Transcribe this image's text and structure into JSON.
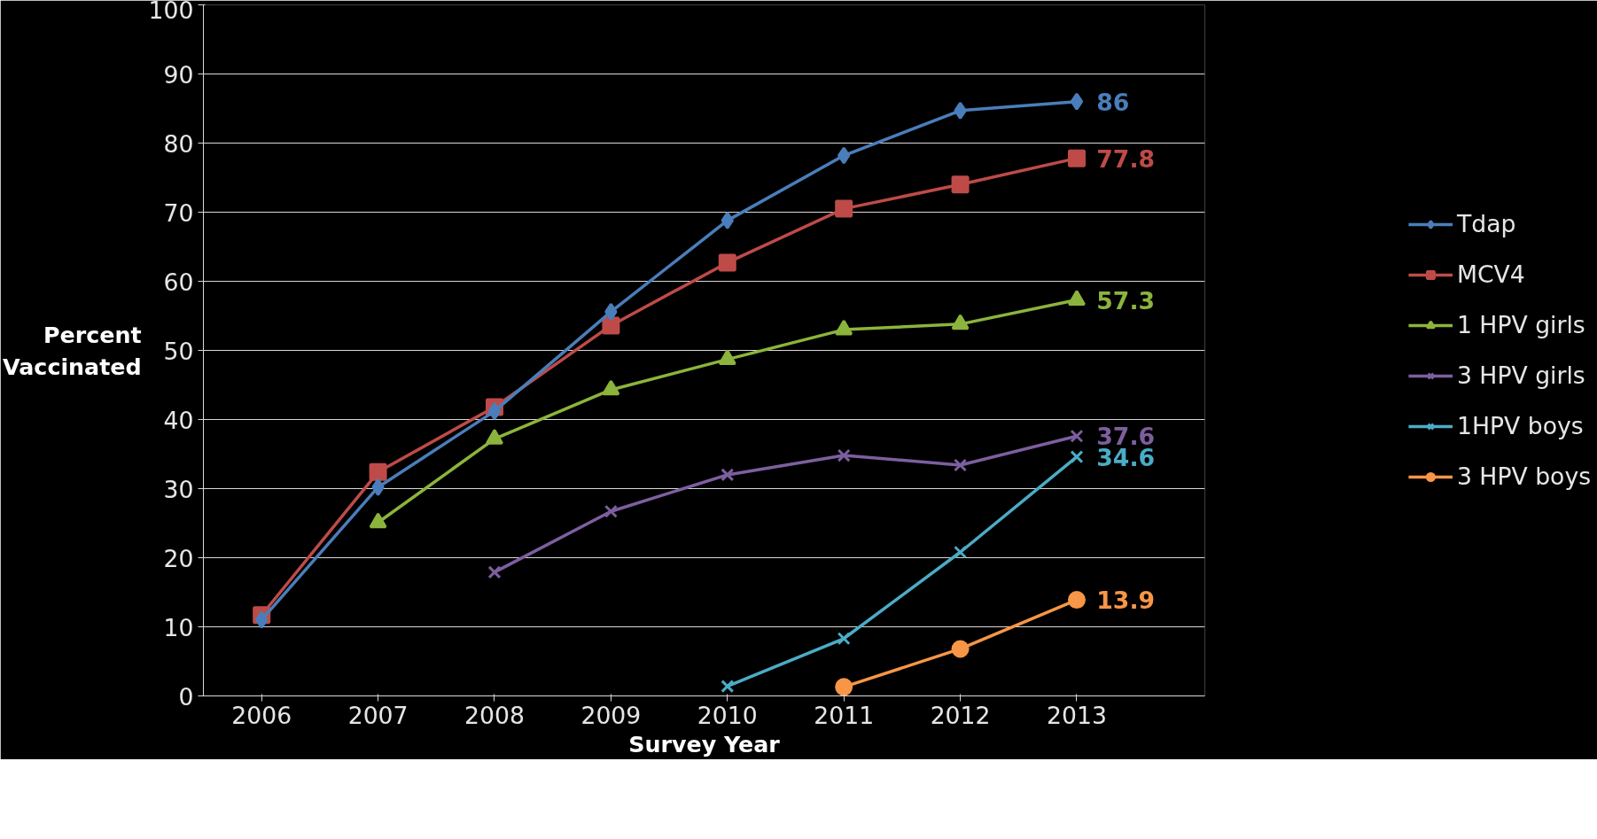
{
  "chart_data": {
    "type": "line",
    "xlabel": "Survey Year",
    "ylabel": "Percent\nVaccinated",
    "categories": [
      "2006",
      "2007",
      "2008",
      "2009",
      "2010",
      "2011",
      "2012",
      "2013"
    ],
    "ylim": [
      0,
      100
    ],
    "yticks": [
      0,
      10,
      20,
      30,
      40,
      50,
      60,
      70,
      80,
      90,
      100
    ],
    "grid": "y",
    "legend": "right",
    "series": [
      {
        "name": "Tdap",
        "color": "#4a7ebb",
        "marker": "diamond",
        "values": [
          11.0,
          30.2,
          41.2,
          55.6,
          68.8,
          78.2,
          84.7,
          86
        ],
        "value_labels": [
          null,
          null,
          null,
          null,
          null,
          null,
          null,
          "86"
        ]
      },
      {
        "name": "MCV4",
        "color": "#be4b48",
        "marker": "square",
        "values": [
          11.7,
          32.4,
          41.8,
          53.6,
          62.7,
          70.5,
          74.0,
          77.8
        ],
        "value_labels": [
          null,
          null,
          null,
          null,
          null,
          null,
          null,
          "77.8"
        ]
      },
      {
        "name": "1 HPV girls",
        "color": "#8cb43c",
        "marker": "triangle",
        "values": [
          null,
          25.1,
          37.2,
          44.3,
          48.7,
          53.0,
          53.8,
          57.3
        ],
        "value_labels": [
          null,
          null,
          null,
          null,
          null,
          null,
          null,
          "57.3"
        ]
      },
      {
        "name": "3 HPV girls",
        "color": "#7d5fa0",
        "marker": "cross",
        "values": [
          null,
          null,
          17.9,
          26.7,
          32.0,
          34.8,
          33.4,
          37.6
        ],
        "value_labels": [
          null,
          null,
          null,
          null,
          null,
          null,
          null,
          "37.6"
        ]
      },
      {
        "name": "1HPV boys",
        "color": "#4bacc6",
        "marker": "cross",
        "values": [
          null,
          null,
          null,
          null,
          1.4,
          8.3,
          20.8,
          34.6
        ],
        "value_labels": [
          null,
          null,
          null,
          null,
          null,
          null,
          null,
          "34.6"
        ]
      },
      {
        "name": "3 HPV boys",
        "color": "#f79646",
        "marker": "circle",
        "values": [
          null,
          null,
          null,
          null,
          null,
          1.3,
          6.8,
          13.9
        ],
        "value_labels": [
          null,
          null,
          null,
          null,
          null,
          null,
          null,
          "13.9"
        ]
      }
    ]
  }
}
